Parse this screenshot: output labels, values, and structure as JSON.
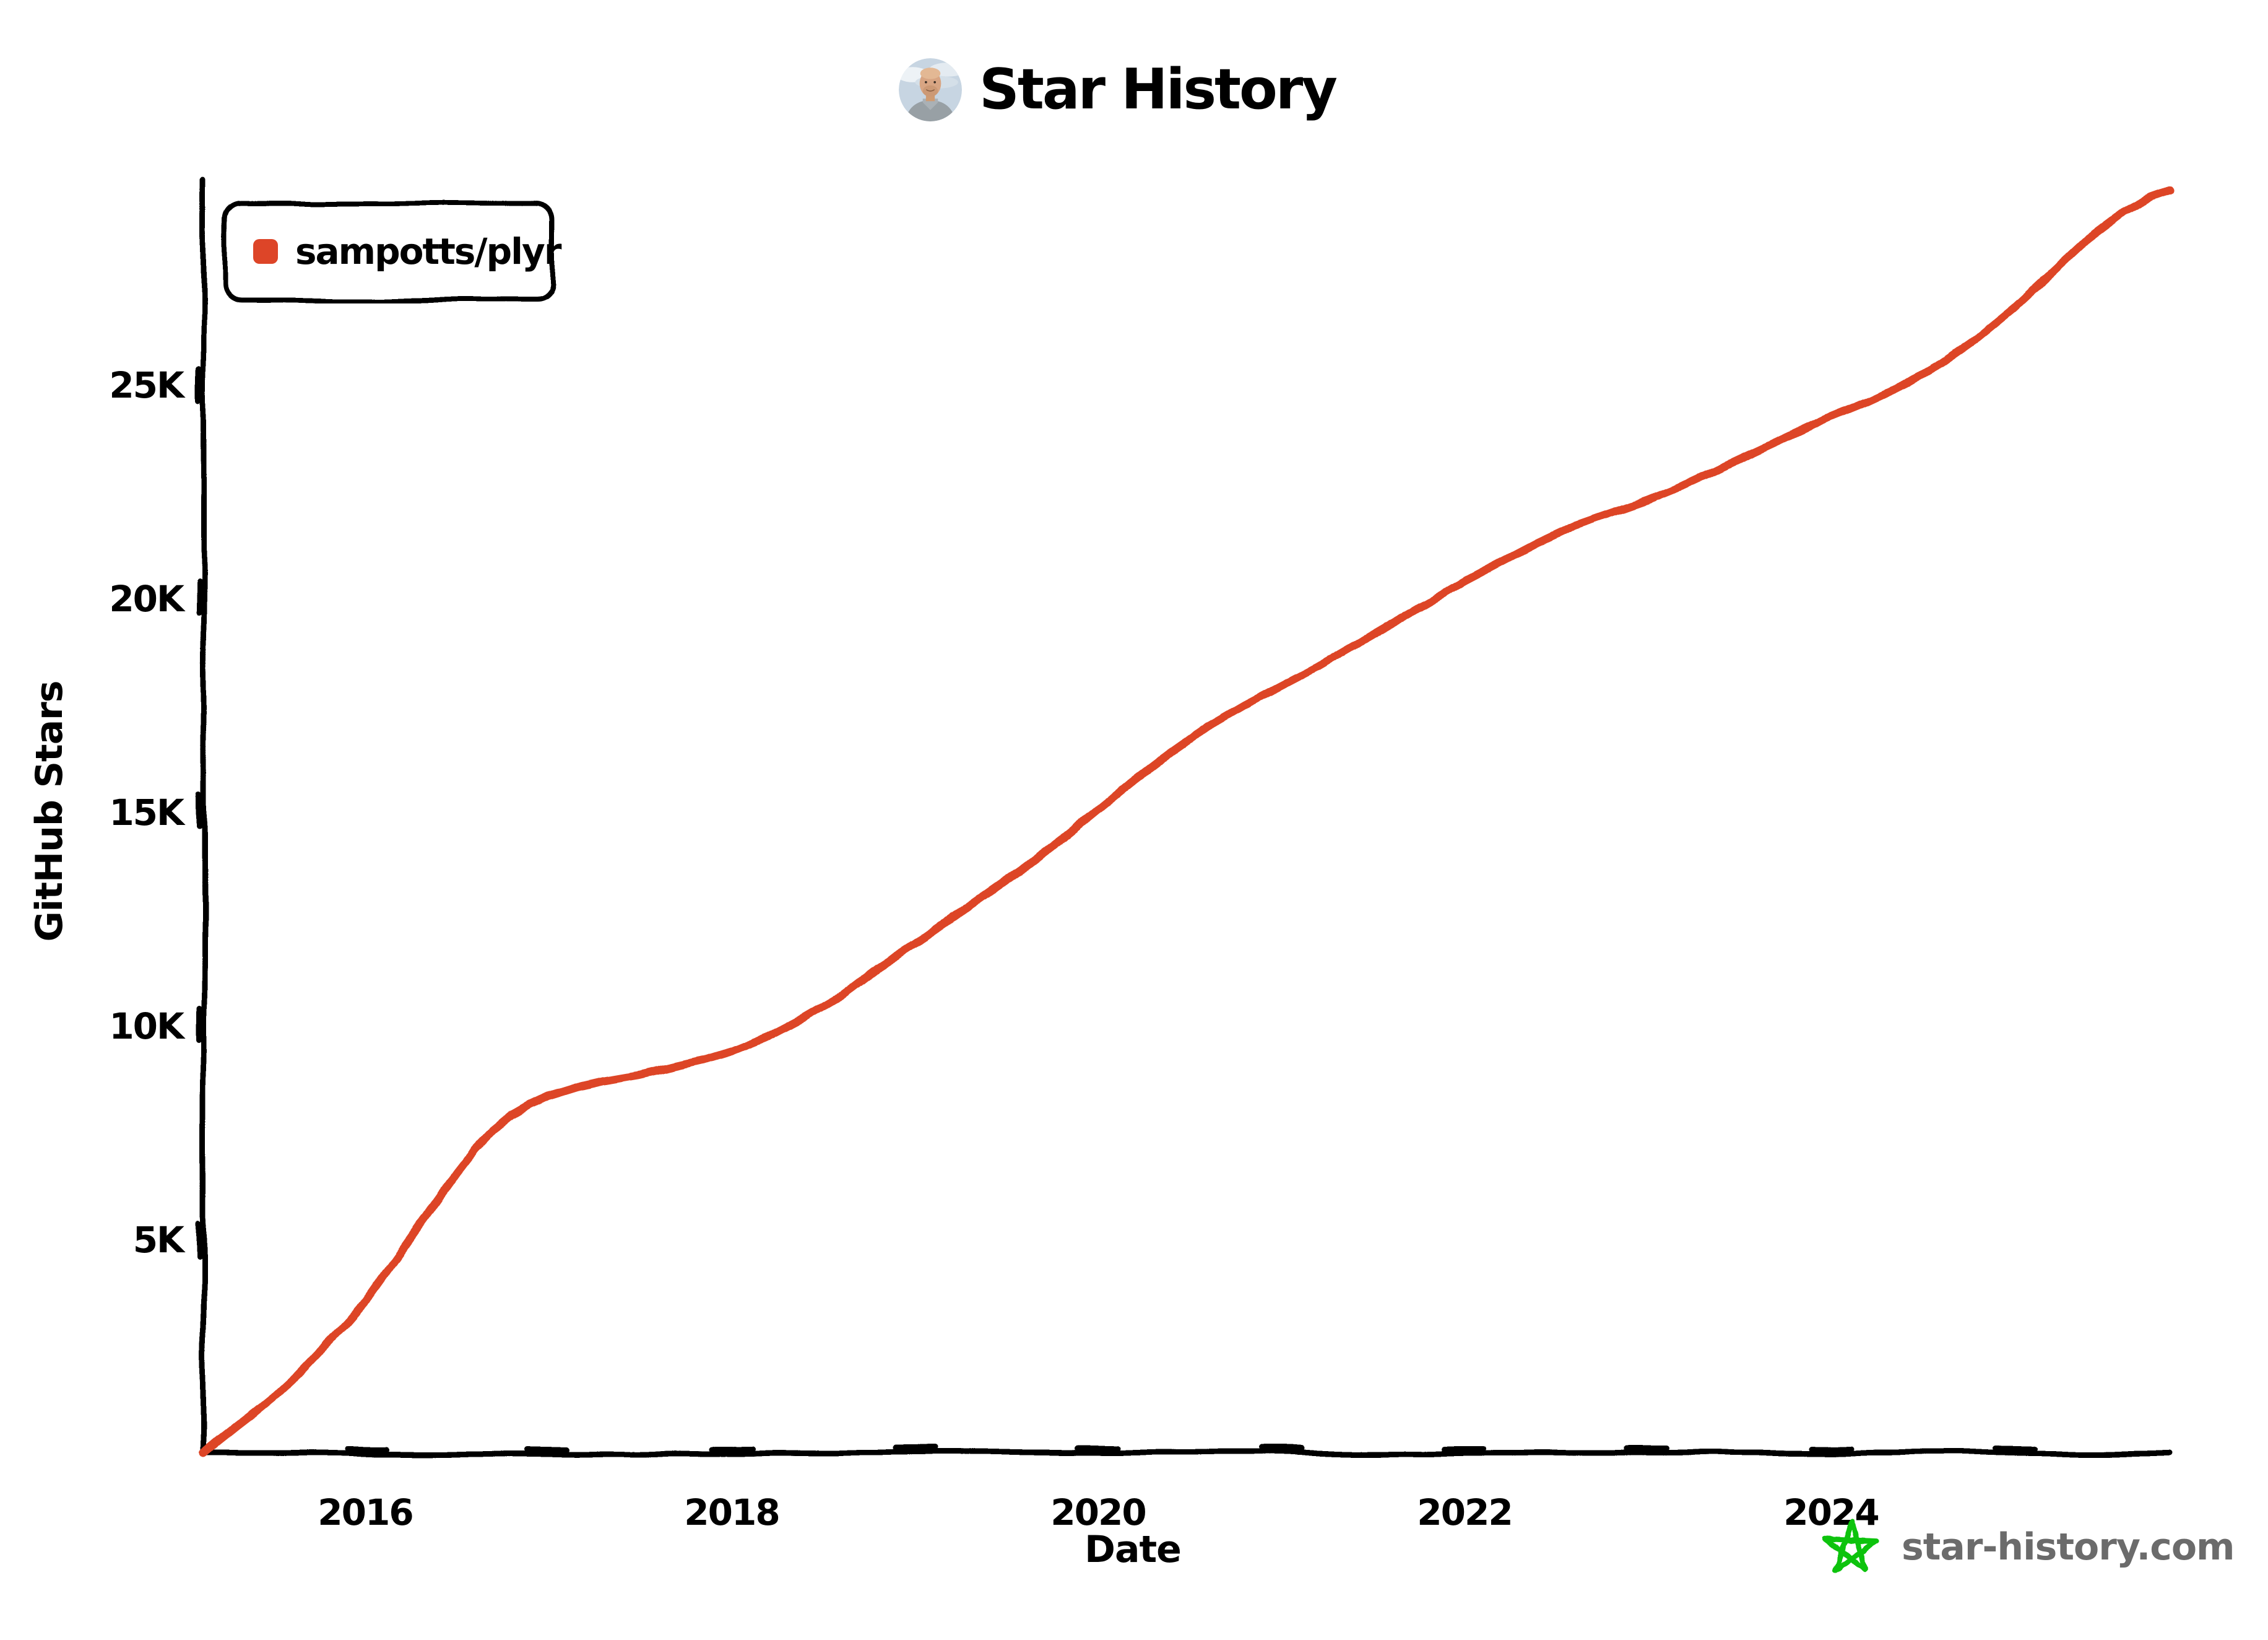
{
  "page": {
    "background": "#ffffff"
  },
  "title": {
    "text": "Star History"
  },
  "legend": {
    "label": "sampotts/plyr",
    "marker_color": "#DD4528"
  },
  "watermark": {
    "text": "star-history.com",
    "star_color": "#0DC30D",
    "text_color": "#6b6b6b"
  },
  "chart_data": {
    "type": "line",
    "title": "Star History",
    "xlabel": "Date",
    "ylabel": "GitHub Stars",
    "x_ticks": [
      2016,
      2018,
      2020,
      2022,
      2024
    ],
    "y_ticks": [
      {
        "value": 5000,
        "label": "5K"
      },
      {
        "value": 10000,
        "label": "10K"
      },
      {
        "value": 15000,
        "label": "15K"
      },
      {
        "value": 20000,
        "label": "20K"
      },
      {
        "value": 25000,
        "label": "25K"
      }
    ],
    "xlim": [
      2015.1,
      2025.9
    ],
    "ylim": [
      0,
      29800
    ],
    "grid": false,
    "legend_position": "top-left",
    "style": "xkcd-sketch",
    "series": [
      {
        "name": "sampotts/plyr",
        "color": "#DD4528",
        "units": "stars",
        "points": [
          [
            2015.12,
            0
          ],
          [
            2015.2,
            280
          ],
          [
            2015.3,
            620
          ],
          [
            2015.4,
            950
          ],
          [
            2015.5,
            1300
          ],
          [
            2015.6,
            1700
          ],
          [
            2015.7,
            2150
          ],
          [
            2015.8,
            2600
          ],
          [
            2015.9,
            3050
          ],
          [
            2016.0,
            3550
          ],
          [
            2016.1,
            4150
          ],
          [
            2016.2,
            4750
          ],
          [
            2016.3,
            5350
          ],
          [
            2016.4,
            5950
          ],
          [
            2016.5,
            6550
          ],
          [
            2016.6,
            7100
          ],
          [
            2016.7,
            7550
          ],
          [
            2016.8,
            7900
          ],
          [
            2016.9,
            8150
          ],
          [
            2017.0,
            8350
          ],
          [
            2017.15,
            8550
          ],
          [
            2017.3,
            8700
          ],
          [
            2017.5,
            8850
          ],
          [
            2017.7,
            9050
          ],
          [
            2017.85,
            9200
          ],
          [
            2018.0,
            9400
          ],
          [
            2018.2,
            9750
          ],
          [
            2018.4,
            10200
          ],
          [
            2018.6,
            10700
          ],
          [
            2018.8,
            11350
          ],
          [
            2019.0,
            11900
          ],
          [
            2019.2,
            12500
          ],
          [
            2019.4,
            13100
          ],
          [
            2019.6,
            13700
          ],
          [
            2019.8,
            14350
          ],
          [
            2020.0,
            15050
          ],
          [
            2020.2,
            15750
          ],
          [
            2020.4,
            16400
          ],
          [
            2020.6,
            17000
          ],
          [
            2020.8,
            17500
          ],
          [
            2021.0,
            17950
          ],
          [
            2021.2,
            18400
          ],
          [
            2021.4,
            18900
          ],
          [
            2021.6,
            19400
          ],
          [
            2021.8,
            19900
          ],
          [
            2022.0,
            20400
          ],
          [
            2022.2,
            20850
          ],
          [
            2022.4,
            21300
          ],
          [
            2022.6,
            21700
          ],
          [
            2022.8,
            22000
          ],
          [
            2023.0,
            22300
          ],
          [
            2023.2,
            22650
          ],
          [
            2023.4,
            23050
          ],
          [
            2023.6,
            23450
          ],
          [
            2023.8,
            23850
          ],
          [
            2024.0,
            24250
          ],
          [
            2024.2,
            24600
          ],
          [
            2024.4,
            25000
          ],
          [
            2024.6,
            25500
          ],
          [
            2024.8,
            26100
          ],
          [
            2025.0,
            26800
          ],
          [
            2025.2,
            27600
          ],
          [
            2025.4,
            28400
          ],
          [
            2025.6,
            29050
          ],
          [
            2025.75,
            29400
          ],
          [
            2025.85,
            29550
          ]
        ]
      }
    ]
  }
}
